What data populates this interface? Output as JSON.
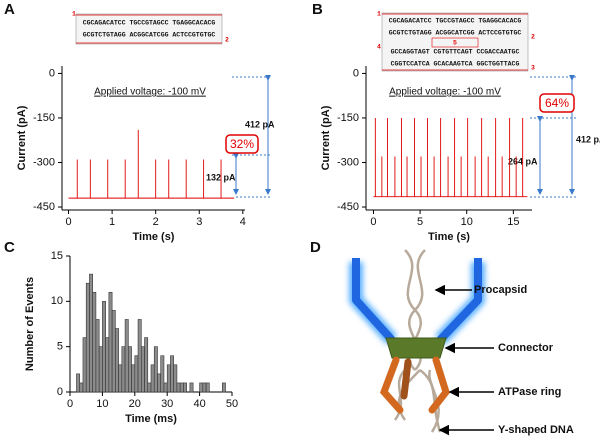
{
  "chart_data": [
    {
      "type": "line",
      "label": "A",
      "xlabel": "Time (s)",
      "ylabel": "Current (pA)",
      "annotations": [
        "Applied voltage: -100 mV",
        "412 pA",
        "132 pA",
        "32%"
      ],
      "series": [
        {
          "color": "#e00000",
          "x": [
            0,
            0.2,
            0.2,
            0.2,
            0.5,
            0.5,
            0.5,
            0.9,
            0.9,
            0.9,
            1.3,
            1.3,
            1.3,
            1.6,
            1.6,
            1.6,
            2.0,
            2.0,
            2.0,
            2.3,
            2.3,
            2.3,
            2.7,
            2.7,
            2.7,
            3.1,
            3.1,
            3.1,
            3.5,
            3.5,
            3.5,
            3.8
          ],
          "values": [
            -420,
            -420,
            -290,
            -420,
            -420,
            -290,
            -420,
            -420,
            -290,
            -420,
            -420,
            -290,
            -420,
            -420,
            -190,
            -420,
            -420,
            -290,
            -420,
            -420,
            -290,
            -420,
            -420,
            -290,
            -420,
            -420,
            -290,
            -420,
            -420,
            -290,
            -420,
            -420
          ]
        }
      ],
      "xlim": [
        -0.15,
        4.05
      ],
      "xticks": [
        0,
        1,
        2,
        3,
        4
      ],
      "ylim": [
        -460,
        25
      ],
      "yticks": [
        0,
        -150,
        -300,
        -450
      ]
    },
    {
      "type": "line",
      "label": "B",
      "xlabel": "Time (s)",
      "ylabel": "Current (pA)",
      "annotations": [
        "Applied voltage: -100 mV",
        "412 pA",
        "264 pA",
        "64%"
      ],
      "series": [
        {
          "color": "#e00000",
          "x": [
            0,
            0.2,
            0.2,
            0.2,
            0.9,
            0.9,
            0.9,
            1.5,
            1.5,
            1.5,
            2.3,
            2.3,
            2.3,
            3.0,
            3.0,
            3.0,
            3.6,
            3.6,
            3.6,
            4.4,
            4.4,
            4.4,
            5.1,
            5.1,
            5.1,
            5.8,
            5.8,
            5.8,
            6.5,
            6.5,
            6.5,
            7.2,
            7.2,
            7.2,
            8.0,
            8.0,
            8.0,
            8.7,
            8.7,
            8.7,
            9.4,
            9.4,
            9.4,
            10.1,
            10.1,
            10.1,
            10.9,
            10.9,
            10.9,
            11.6,
            11.6,
            11.6,
            12.3,
            12.3,
            12.3,
            13.1,
            13.1,
            13.1,
            13.8,
            13.8,
            13.8,
            14.6,
            14.6,
            14.6,
            15.3,
            15.3,
            15.3,
            16.0,
            16.0,
            16.0,
            16.5
          ],
          "values": [
            -415,
            -415,
            -150,
            -415,
            -415,
            -280,
            -415,
            -415,
            -150,
            -415,
            -415,
            -280,
            -415,
            -415,
            -150,
            -415,
            -415,
            -280,
            -415,
            -415,
            -150,
            -415,
            -415,
            -280,
            -415,
            -415,
            -150,
            -415,
            -415,
            -280,
            -415,
            -415,
            -150,
            -415,
            -415,
            -280,
            -415,
            -415,
            -150,
            -415,
            -415,
            -280,
            -415,
            -415,
            -150,
            -415,
            -415,
            -280,
            -415,
            -415,
            -150,
            -415,
            -415,
            -280,
            -415,
            -415,
            -150,
            -415,
            -415,
            -280,
            -415,
            -415,
            -150,
            -415,
            -415,
            -280,
            -415,
            -415,
            -150,
            -415,
            -415
          ]
        }
      ],
      "xlim": [
        -0.8,
        17
      ],
      "xticks": [
        0,
        5,
        10,
        15
      ],
      "ylim": [
        -460,
        25
      ],
      "yticks": [
        0,
        -150,
        -300,
        -450
      ]
    },
    {
      "type": "histogram",
      "label": "C",
      "xlabel": "Time (ms)",
      "ylabel": "Number of Events",
      "bins": [
        2,
        3,
        4,
        5,
        6,
        7,
        8,
        9,
        10,
        11,
        12,
        13,
        14,
        15,
        16,
        17,
        18,
        19,
        20,
        21,
        22,
        23,
        24,
        25,
        26,
        27,
        28,
        29,
        30,
        31,
        32,
        33,
        34,
        35,
        36,
        37,
        38,
        39,
        40,
        41,
        42,
        43,
        44,
        45,
        46,
        47,
        48
      ],
      "counts": [
        2,
        1,
        6,
        12,
        13,
        11,
        8,
        5,
        10,
        6,
        11,
        9,
        7,
        3,
        5,
        8,
        5,
        3,
        4,
        8,
        5,
        6,
        1,
        3,
        5,
        2,
        4,
        1,
        3,
        4,
        3,
        1,
        1,
        1,
        0,
        1,
        0,
        0,
        1,
        1,
        1,
        0,
        0,
        0,
        0,
        1
      ],
      "color": "#8c8c8c",
      "xlim": [
        0,
        50
      ],
      "xticks": [
        0,
        10,
        20,
        30,
        40,
        50
      ],
      "ylim": [
        0,
        15
      ],
      "yticks": [
        0,
        5,
        10,
        15
      ]
    }
  ],
  "sequences": {
    "A": {
      "strands": [
        "CGCAGACATCC TGCCGTAGCC TGAGGCACACG",
        "GCGTCTGTAGG ACGGCATCGG ACTCCGTGTGC"
      ],
      "labels": [
        "1",
        "2"
      ]
    },
    "B": {
      "strands": [
        "CGCAGACATCC TGCCGTAGCC TGAGGCACACG",
        "GCGTCTGTAGG ACGGCATCGG ACTCCGTGTGC",
        "GCCAGGTAGT CGTGTTCAGT CCGACCAATGC",
        "CGGTCCATCA GCACAAGTCA GGCTGGTTACG"
      ],
      "labels": [
        "1",
        "2",
        "4",
        "5",
        "3"
      ]
    }
  },
  "diagram": {
    "label": "D",
    "parts": [
      "Procapsid",
      "Connector",
      "ATPase ring",
      "Y-shaped DNA"
    ]
  }
}
